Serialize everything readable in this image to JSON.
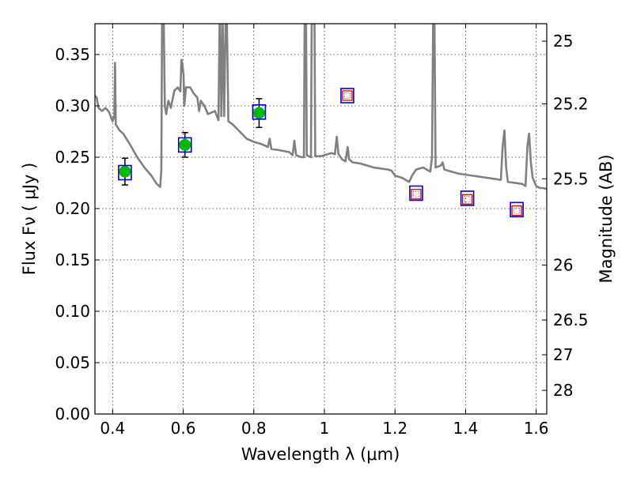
{
  "chart_data": {
    "type": "line",
    "xlabel": "Wavelength  λ (μm)",
    "ylabel": "Flux  Fν ( μJy )",
    "y2label": "Magnitude (AB)",
    "xlim": [
      0.35,
      1.63
    ],
    "ylim": [
      0.0,
      0.38
    ],
    "grid": true,
    "x_ticks": [
      {
        "value": 0.4,
        "label": "0.4"
      },
      {
        "value": 0.6,
        "label": "0.6"
      },
      {
        "value": 0.8,
        "label": "0.8"
      },
      {
        "value": 1.0,
        "label": "1"
      },
      {
        "value": 1.2,
        "label": "1.2"
      },
      {
        "value": 1.4,
        "label": "1.4"
      },
      {
        "value": 1.6,
        "label": "1.6"
      }
    ],
    "y_ticks": [
      {
        "value": 0.0,
        "label": "0.00"
      },
      {
        "value": 0.05,
        "label": "0.05"
      },
      {
        "value": 0.1,
        "label": "0.10"
      },
      {
        "value": 0.15,
        "label": "0.15"
      },
      {
        "value": 0.2,
        "label": "0.20"
      },
      {
        "value": 0.25,
        "label": "0.25"
      },
      {
        "value": 0.3,
        "label": "0.30"
      },
      {
        "value": 0.35,
        "label": "0.35"
      }
    ],
    "y2_ticks": [
      {
        "flux": 0.363,
        "label": "25"
      },
      {
        "flux": 0.302,
        "label": "25.2"
      },
      {
        "flux": 0.229,
        "label": "25.5"
      },
      {
        "flux": 0.145,
        "label": "26"
      },
      {
        "flux": 0.0915,
        "label": "26.5"
      },
      {
        "flux": 0.0577,
        "label": "27"
      },
      {
        "flux": 0.023,
        "label": "28"
      }
    ],
    "series": [
      {
        "kind": "model_sed",
        "color": "#808080",
        "points": [
          [
            0.35,
            0.31
          ],
          [
            0.355,
            0.308
          ],
          [
            0.36,
            0.298
          ],
          [
            0.37,
            0.295
          ],
          [
            0.38,
            0.298
          ],
          [
            0.39,
            0.294
          ],
          [
            0.4,
            0.285
          ],
          [
            0.405,
            0.29
          ],
          [
            0.407,
            0.342
          ],
          [
            0.409,
            0.282
          ],
          [
            0.42,
            0.276
          ],
          [
            0.43,
            0.273
          ],
          [
            0.45,
            0.262
          ],
          [
            0.47,
            0.25
          ],
          [
            0.49,
            0.24
          ],
          [
            0.51,
            0.232
          ],
          [
            0.525,
            0.224
          ],
          [
            0.535,
            0.221
          ],
          [
            0.538,
            0.238
          ],
          [
            0.54,
            0.38
          ],
          [
            0.545,
            0.38
          ],
          [
            0.548,
            0.3
          ],
          [
            0.552,
            0.292
          ],
          [
            0.558,
            0.305
          ],
          [
            0.565,
            0.298
          ],
          [
            0.575,
            0.315
          ],
          [
            0.585,
            0.318
          ],
          [
            0.592,
            0.314
          ],
          [
            0.595,
            0.345
          ],
          [
            0.598,
            0.34
          ],
          [
            0.601,
            0.33
          ],
          [
            0.603,
            0.3
          ],
          [
            0.608,
            0.318
          ],
          [
            0.62,
            0.318
          ],
          [
            0.63,
            0.312
          ],
          [
            0.64,
            0.308
          ],
          [
            0.645,
            0.295
          ],
          [
            0.65,
            0.305
          ],
          [
            0.66,
            0.3
          ],
          [
            0.67,
            0.292
          ],
          [
            0.69,
            0.295
          ],
          [
            0.7,
            0.286
          ],
          [
            0.703,
            0.38
          ],
          [
            0.705,
            0.38
          ],
          [
            0.708,
            0.29
          ],
          [
            0.712,
            0.38
          ],
          [
            0.716,
            0.29
          ],
          [
            0.72,
            0.38
          ],
          [
            0.724,
            0.38
          ],
          [
            0.728,
            0.285
          ],
          [
            0.74,
            0.282
          ],
          [
            0.76,
            0.275
          ],
          [
            0.78,
            0.268
          ],
          [
            0.8,
            0.265
          ],
          [
            0.82,
            0.263
          ],
          [
            0.84,
            0.26
          ],
          [
            0.845,
            0.268
          ],
          [
            0.85,
            0.258
          ],
          [
            0.87,
            0.257
          ],
          [
            0.9,
            0.255
          ],
          [
            0.91,
            0.252
          ],
          [
            0.915,
            0.266
          ],
          [
            0.92,
            0.252
          ],
          [
            0.935,
            0.25
          ],
          [
            0.942,
            0.25
          ],
          [
            0.944,
            0.38
          ],
          [
            0.948,
            0.38
          ],
          [
            0.95,
            0.252
          ],
          [
            0.962,
            0.25
          ],
          [
            0.964,
            0.38
          ],
          [
            0.968,
            0.38
          ],
          [
            0.972,
            0.38
          ],
          [
            0.974,
            0.251
          ],
          [
            0.99,
            0.251
          ],
          [
            1.0,
            0.252
          ],
          [
            1.02,
            0.254
          ],
          [
            1.03,
            0.253
          ],
          [
            1.035,
            0.27
          ],
          [
            1.04,
            0.253
          ],
          [
            1.05,
            0.248
          ],
          [
            1.06,
            0.246
          ],
          [
            1.066,
            0.26
          ],
          [
            1.07,
            0.248
          ],
          [
            1.08,
            0.245
          ],
          [
            1.1,
            0.244
          ],
          [
            1.12,
            0.242
          ],
          [
            1.14,
            0.24
          ],
          [
            1.16,
            0.239
          ],
          [
            1.18,
            0.238
          ],
          [
            1.19,
            0.237
          ],
          [
            1.2,
            0.232
          ],
          [
            1.22,
            0.23
          ],
          [
            1.23,
            0.228
          ],
          [
            1.24,
            0.226
          ],
          [
            1.25,
            0.233
          ],
          [
            1.26,
            0.238
          ],
          [
            1.28,
            0.24
          ],
          [
            1.3,
            0.236
          ],
          [
            1.305,
            0.25
          ],
          [
            1.308,
            0.38
          ],
          [
            1.312,
            0.38
          ],
          [
            1.315,
            0.24
          ],
          [
            1.33,
            0.242
          ],
          [
            1.335,
            0.245
          ],
          [
            1.34,
            0.238
          ],
          [
            1.36,
            0.236
          ],
          [
            1.38,
            0.234
          ],
          [
            1.4,
            0.233
          ],
          [
            1.42,
            0.232
          ],
          [
            1.44,
            0.231
          ],
          [
            1.46,
            0.23
          ],
          [
            1.48,
            0.229
          ],
          [
            1.5,
            0.228
          ],
          [
            1.505,
            0.26
          ],
          [
            1.51,
            0.276
          ],
          [
            1.515,
            0.24
          ],
          [
            1.52,
            0.226
          ],
          [
            1.54,
            0.225
          ],
          [
            1.56,
            0.224
          ],
          [
            1.57,
            0.222
          ],
          [
            1.575,
            0.26
          ],
          [
            1.58,
            0.273
          ],
          [
            1.585,
            0.245
          ],
          [
            1.59,
            0.23
          ],
          [
            1.6,
            0.222
          ],
          [
            1.61,
            0.22
          ],
          [
            1.62,
            0.22
          ],
          [
            1.63,
            0.219
          ]
        ]
      },
      {
        "kind": "observed",
        "marker": "circle",
        "color": "#00bb00",
        "points": [
          {
            "x": 0.435,
            "y": 0.236,
            "yerr": 0.013
          },
          {
            "x": 0.605,
            "y": 0.262,
            "yerr": 0.012
          },
          {
            "x": 0.815,
            "y": 0.293,
            "yerr": 0.014
          }
        ]
      },
      {
        "kind": "model_band",
        "marker": "square",
        "edge_color": "#0000cc",
        "points": [
          {
            "x": 0.435,
            "y": 0.235
          },
          {
            "x": 0.605,
            "y": 0.262
          },
          {
            "x": 0.815,
            "y": 0.294
          },
          {
            "x": 1.065,
            "y": 0.31
          },
          {
            "x": 1.26,
            "y": 0.215
          },
          {
            "x": 1.405,
            "y": 0.21
          },
          {
            "x": 1.545,
            "y": 0.199
          }
        ]
      },
      {
        "kind": "upper_limit",
        "marker": "dotted-square",
        "edge_color": "#dd0000",
        "points": [
          {
            "x": 1.065,
            "y": 0.31
          },
          {
            "x": 1.26,
            "y": 0.214
          },
          {
            "x": 1.405,
            "y": 0.209
          },
          {
            "x": 1.545,
            "y": 0.198
          }
        ]
      }
    ]
  }
}
